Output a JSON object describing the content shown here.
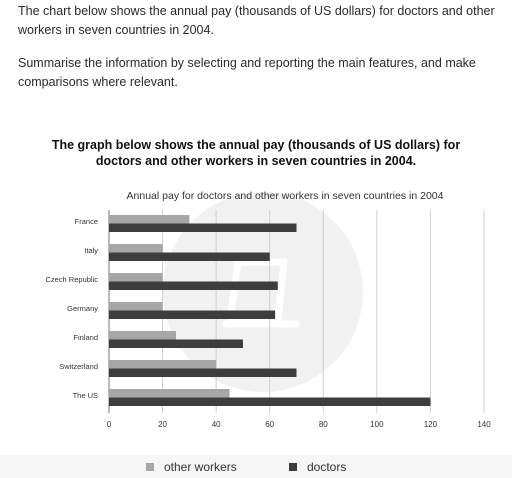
{
  "prompt": {
    "line1": "The chart below shows the annual pay (thousands of US dollars) for doctors and other workers in seven countries in 2004.",
    "line2": "Summarise the information by selecting and reporting the main features, and make comparisons where relevant."
  },
  "figure_heading": "The graph below shows the annual pay (thousands of US dollars) for doctors and other workers in seven countries in 2004.",
  "colors": {
    "other_workers": "#a6a6a6",
    "doctors": "#3d3d3d",
    "grid": "#cfcfcf",
    "watermark": "#e6e6e6"
  },
  "chart_data": {
    "type": "bar",
    "orientation": "horizontal",
    "title": "Annual pay for doctors and other workers in seven countries in 2004",
    "categories": [
      "France",
      "Italy",
      "Czech Republic",
      "Germany",
      "Finland",
      "Switzerland",
      "The US"
    ],
    "series": [
      {
        "name": "other workers",
        "values": [
          30,
          20,
          20,
          20,
          25,
          40,
          45
        ]
      },
      {
        "name": "doctors",
        "values": [
          70,
          60,
          63,
          62,
          50,
          70,
          120
        ]
      }
    ],
    "xlim": [
      0,
      140
    ],
    "xticks": [
      0,
      20,
      40,
      60,
      80,
      100,
      120,
      140
    ],
    "grid": true,
    "legend_position": "bottom"
  }
}
